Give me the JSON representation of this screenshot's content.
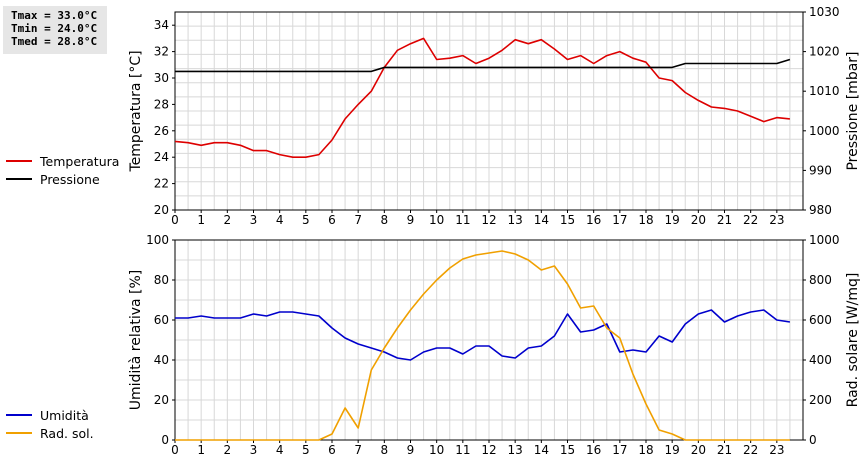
{
  "stats": {
    "tmax": "Tmax = 33.0°C",
    "tmin": "Tmin = 24.0°C",
    "tmed": "Tmed = 28.8°C"
  },
  "colors": {
    "red": "#dd0000",
    "black": "#000000",
    "blue": "#0000cc",
    "orange": "#f0a000",
    "grid": "#d8d8d8"
  },
  "chart_data": [
    {
      "type": "line",
      "xlim": [
        0,
        24
      ],
      "x_ticks": [
        0,
        1,
        2,
        3,
        4,
        5,
        6,
        7,
        8,
        9,
        10,
        11,
        12,
        13,
        14,
        15,
        16,
        17,
        18,
        19,
        20,
        21,
        22,
        23
      ],
      "ylabel": "Temperatura [°C]",
      "ylim": [
        20,
        35
      ],
      "y_ticks": [
        20,
        22,
        24,
        26,
        28,
        30,
        32,
        34
      ],
      "y2label": "Pressione [mbar]",
      "y2lim": [
        980,
        1030
      ],
      "y2_ticks": [
        980,
        990,
        1000,
        1010,
        1020,
        1030
      ],
      "grid": true,
      "series": [
        {
          "name": "Temperatura",
          "axis": "left",
          "color": "#dd0000",
          "x": [
            0,
            0.5,
            1,
            1.5,
            2,
            2.5,
            3,
            3.5,
            4,
            4.5,
            5,
            5.5,
            6,
            6.5,
            7,
            7.5,
            8,
            8.5,
            9,
            9.5,
            10,
            10.5,
            11,
            11.5,
            12,
            12.5,
            13,
            13.5,
            14,
            14.5,
            15,
            15.5,
            16,
            16.5,
            17,
            17.5,
            18,
            18.5,
            19,
            19.5,
            20,
            20.5,
            21,
            21.5,
            22,
            22.5,
            23,
            23.5
          ],
          "values": [
            25.2,
            25.1,
            24.9,
            25.1,
            25.1,
            24.9,
            24.5,
            24.5,
            24.2,
            24.0,
            24.0,
            24.2,
            25.3,
            26.9,
            28.0,
            29.0,
            30.8,
            32.1,
            32.6,
            33.0,
            31.4,
            31.5,
            31.7,
            31.1,
            31.5,
            32.1,
            32.9,
            32.6,
            32.9,
            32.2,
            31.4,
            31.7,
            31.1,
            31.7,
            32.0,
            31.5,
            31.2,
            30.0,
            29.8,
            28.9,
            28.3,
            27.8,
            27.7,
            27.5,
            27.1,
            26.7,
            27.0,
            26.9
          ]
        },
        {
          "name": "Pressione",
          "axis": "right",
          "color": "#000000",
          "x": [
            0,
            7.5,
            8,
            8.5,
            19,
            19.5,
            23,
            23.5
          ],
          "values": [
            1015,
            1015,
            1016,
            1016,
            1016,
            1017,
            1017,
            1018
          ]
        }
      ]
    },
    {
      "type": "line",
      "xlim": [
        0,
        24
      ],
      "x_ticks": [
        0,
        1,
        2,
        3,
        4,
        5,
        6,
        7,
        8,
        9,
        10,
        11,
        12,
        13,
        14,
        15,
        16,
        17,
        18,
        19,
        20,
        21,
        22,
        23
      ],
      "ylabel": "Umidità relativa [%]",
      "ylim": [
        0,
        100
      ],
      "y_ticks": [
        0,
        20,
        40,
        60,
        80,
        100
      ],
      "y2label": "Rad. solare [W/mq]",
      "y2lim": [
        0,
        1000
      ],
      "y2_ticks": [
        0,
        200,
        400,
        600,
        800,
        1000
      ],
      "grid": true,
      "series": [
        {
          "name": "Umidità",
          "axis": "left",
          "color": "#0000cc",
          "x": [
            0,
            0.5,
            1,
            1.5,
            2,
            2.5,
            3,
            3.5,
            4,
            4.5,
            5,
            5.5,
            6,
            6.5,
            7,
            7.5,
            8,
            8.5,
            9,
            9.5,
            10,
            10.5,
            11,
            11.5,
            12,
            12.5,
            13,
            13.5,
            14,
            14.5,
            15,
            15.5,
            16,
            16.5,
            17,
            17.5,
            18,
            18.5,
            19,
            19.5,
            20,
            20.5,
            21,
            21.5,
            22,
            22.5,
            23,
            23.5
          ],
          "values": [
            61,
            61,
            62,
            61,
            61,
            61,
            63,
            62,
            64,
            64,
            63,
            62,
            56,
            51,
            48,
            46,
            44,
            41,
            40,
            44,
            46,
            46,
            43,
            47,
            47,
            42,
            41,
            46,
            47,
            52,
            63,
            54,
            55,
            58,
            44,
            45,
            44,
            52,
            49,
            58,
            63,
            65,
            59,
            62,
            64,
            65,
            60,
            59
          ]
        },
        {
          "name": "Rad. sol.",
          "axis": "right",
          "color": "#f0a000",
          "x": [
            0,
            0.5,
            1,
            1.5,
            2,
            2.5,
            3,
            3.5,
            4,
            4.5,
            5,
            5.5,
            6,
            6.5,
            7,
            7.5,
            8,
            8.5,
            9,
            9.5,
            10,
            10.5,
            11,
            11.5,
            12,
            12.5,
            13,
            13.5,
            14,
            14.5,
            15,
            15.5,
            16,
            16.5,
            17,
            17.5,
            18,
            18.5,
            19,
            19.5,
            20,
            20.5,
            21,
            21.5,
            22,
            22.5,
            23,
            23.5
          ],
          "values": [
            0,
            0,
            0,
            0,
            0,
            0,
            0,
            0,
            0,
            0,
            0,
            0,
            30,
            160,
            60,
            350,
            460,
            560,
            650,
            730,
            800,
            860,
            905,
            925,
            935,
            945,
            930,
            900,
            850,
            870,
            780,
            660,
            670,
            560,
            510,
            330,
            180,
            50,
            30,
            0,
            0,
            0,
            0,
            0,
            0,
            0,
            0,
            0
          ]
        }
      ]
    }
  ]
}
